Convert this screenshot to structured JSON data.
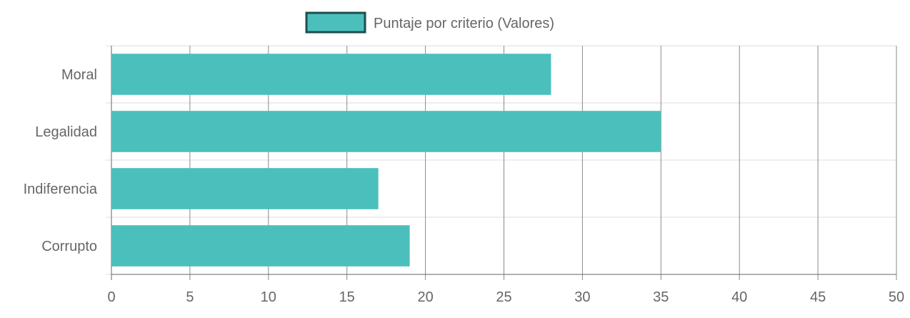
{
  "chart_data": {
    "type": "bar",
    "orientation": "horizontal",
    "categories": [
      "Moral",
      "Legalidad",
      "Indiferencia",
      "Corrupto"
    ],
    "series": [
      {
        "name": "Puntaje por criterio (Valores)",
        "values": [
          28,
          35,
          17,
          19
        ],
        "color": "#4BBFBC",
        "border_color": "#1A4F4E"
      }
    ],
    "xlim": [
      0,
      50
    ],
    "x_ticks": [
      0,
      5,
      10,
      15,
      20,
      25,
      30,
      35,
      40,
      45,
      50
    ],
    "grid": true,
    "legend_position": "top-center",
    "title": "",
    "xlabel": "",
    "ylabel": ""
  },
  "colors": {
    "bar": "#4BBFBC",
    "legend_border": "#1A4F4E",
    "vertical_grid": "#8A8A8A",
    "horizontal_grid": "#DDDDDD",
    "text": "#666666"
  }
}
